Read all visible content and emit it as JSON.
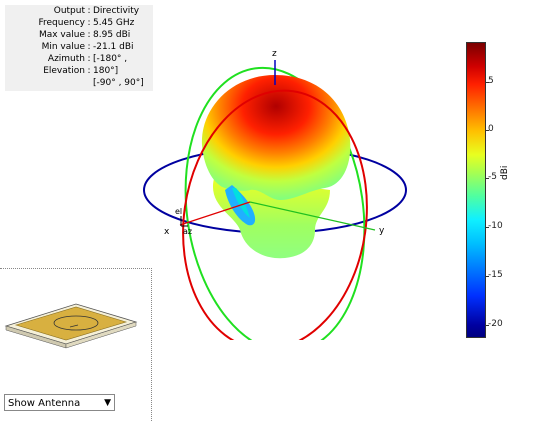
{
  "info": {
    "rows": [
      {
        "key": "Output",
        "value": "Directivity"
      },
      {
        "key": "Frequency",
        "value": "5.45 GHz"
      },
      {
        "key": "Max value",
        "value": "8.95 dBi"
      },
      {
        "key": "Min value",
        "value": "-21.1 dBi"
      },
      {
        "key": "Azimuth",
        "value": "[-180° ,"
      },
      {
        "key": "Elevation",
        "value": "180°]"
      },
      {
        "key": "",
        "value": "[-90° , 90°]"
      }
    ]
  },
  "axes": {
    "z": "z",
    "x": "x",
    "y": "y",
    "el": "el",
    "az": "az"
  },
  "colorbar": {
    "unit": "dBi",
    "ticks": [
      "5",
      "0",
      "-5",
      "-10",
      "-15",
      "-20"
    ]
  },
  "controls": {
    "show_antenna": "Show Antenna"
  }
}
